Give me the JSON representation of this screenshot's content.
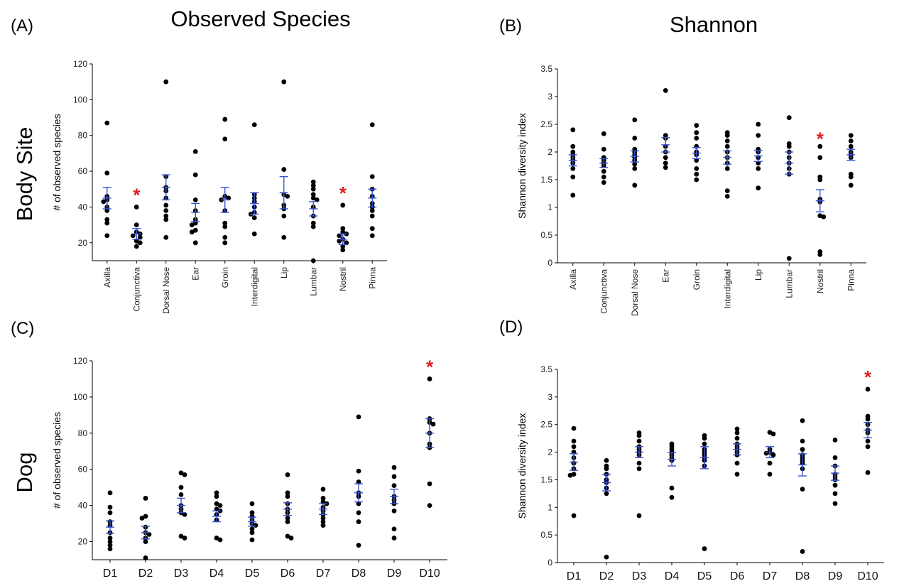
{
  "figure": {
    "column_titles": [
      "Observed Species",
      "Shannon"
    ],
    "row_labels": [
      "Body Site",
      "Dog"
    ]
  },
  "colors": {
    "points": "#000000",
    "error_bars": "#3a56d4",
    "significance": "#e02020"
  },
  "chart_data": [
    {
      "panel": "(A)",
      "type": "scatter",
      "ylabel": "# of observed species",
      "ylim": [
        10,
        120
      ],
      "yticks": [
        20,
        40,
        60,
        80,
        100,
        120
      ],
      "categories": [
        "Axilla",
        "Conjunctiva",
        "Dorsal Nose",
        "Ear",
        "Groin",
        "Interdigital",
        "Lip",
        "Lumbar",
        "Nostril",
        "Pinna"
      ],
      "points": [
        [
          87,
          59,
          46,
          44,
          43,
          40,
          38,
          33,
          31,
          24
        ],
        [
          40,
          30,
          26,
          25,
          24,
          23,
          21,
          20,
          18
        ],
        [
          110,
          57,
          51,
          49,
          45,
          41,
          38,
          35,
          33,
          23
        ],
        [
          71,
          58,
          44,
          38,
          33,
          31,
          30,
          27,
          26,
          20
        ],
        [
          89,
          78,
          46,
          45,
          44,
          38,
          31,
          29,
          23,
          20
        ],
        [
          86,
          47,
          45,
          43,
          40,
          37,
          36,
          34,
          25
        ],
        [
          110,
          61,
          47,
          46,
          41,
          39,
          35,
          23
        ],
        [
          54,
          52,
          50,
          47,
          45,
          44,
          40,
          35,
          31,
          29,
          10
        ],
        [
          41,
          28,
          26,
          25,
          24,
          22,
          21,
          20,
          18,
          16
        ],
        [
          86,
          57,
          50,
          46,
          42,
          40,
          38,
          35,
          28,
          24
        ]
      ],
      "mean": [
        45,
        25,
        51,
        37,
        44,
        42,
        48,
        39,
        22,
        45
      ],
      "se": [
        6,
        3,
        7,
        5,
        7,
        6,
        9,
        4,
        3,
        5
      ],
      "significant": [
        false,
        true,
        false,
        false,
        false,
        false,
        false,
        false,
        true,
        false
      ],
      "significance_marker": "*"
    },
    {
      "panel": "(B)",
      "type": "scatter",
      "ylabel": "Shannon diversity index",
      "ylim": [
        0,
        3.5
      ],
      "yticks": [
        "0",
        "0.5",
        "1",
        "1.5",
        "2",
        "2.5",
        "3",
        "3.5"
      ],
      "categories": [
        "Axilla",
        "Conjunctiva",
        "Dorsal Nose",
        "Ear",
        "Groin",
        "Interdigital",
        "Lip",
        "Lumbar",
        "Nostril",
        "Pinna"
      ],
      "points": [
        [
          2.4,
          2.1,
          2.0,
          1.95,
          1.9,
          1.85,
          1.8,
          1.7,
          1.55,
          1.22
        ],
        [
          2.33,
          2.05,
          1.9,
          1.85,
          1.8,
          1.75,
          1.65,
          1.55,
          1.45
        ],
        [
          2.58,
          2.25,
          2.05,
          2.0,
          1.95,
          1.9,
          1.85,
          1.78,
          1.7,
          1.4
        ],
        [
          3.11,
          2.3,
          2.25,
          2.1,
          2.0,
          1.9,
          1.8,
          1.72
        ],
        [
          2.48,
          2.35,
          2.25,
          2.1,
          2.0,
          1.95,
          1.85,
          1.7,
          1.6,
          1.5
        ],
        [
          2.35,
          2.3,
          2.2,
          2.1,
          2.0,
          1.9,
          1.8,
          1.7,
          1.3,
          1.2
        ],
        [
          2.5,
          2.3,
          2.05,
          2.0,
          1.9,
          1.8,
          1.7,
          1.35
        ],
        [
          2.62,
          2.15,
          2.1,
          2.0,
          1.9,
          1.8,
          1.7,
          1.6,
          0.08
        ],
        [
          2.1,
          1.9,
          1.55,
          1.5,
          1.15,
          1.1,
          0.85,
          0.83,
          0.2,
          0.15
        ],
        [
          2.3,
          2.2,
          2.1,
          2.0,
          1.95,
          1.9,
          1.6,
          1.55,
          1.4
        ]
      ],
      "mean": [
        1.85,
        1.8,
        1.92,
        2.13,
        1.98,
        1.9,
        1.93,
        1.8,
        1.12,
        1.95
      ],
      "se": [
        0.1,
        0.08,
        0.1,
        0.13,
        0.1,
        0.12,
        0.1,
        0.2,
        0.2,
        0.1
      ],
      "significant": [
        false,
        false,
        false,
        false,
        false,
        false,
        false,
        false,
        true,
        false
      ],
      "significance_marker": "*"
    },
    {
      "panel": "(C)",
      "type": "scatter",
      "ylabel": "# of observed species",
      "ylim": [
        10,
        120
      ],
      "yticks": [
        20,
        40,
        60,
        80,
        100,
        120
      ],
      "categories": [
        "D1",
        "D2",
        "D3",
        "D4",
        "D5",
        "D6",
        "D7",
        "D8",
        "D9",
        "D10"
      ],
      "points": [
        [
          47,
          39,
          36,
          31,
          29,
          25,
          22,
          20,
          18,
          16
        ],
        [
          44,
          34,
          33,
          28,
          25,
          24,
          22,
          20,
          11
        ],
        [
          58,
          57,
          50,
          46,
          40,
          38,
          36,
          35,
          23,
          22
        ],
        [
          47,
          45,
          41,
          40,
          38,
          37,
          35,
          32,
          22,
          21
        ],
        [
          41,
          36,
          34,
          32,
          30,
          29,
          27,
          25,
          21
        ],
        [
          57,
          47,
          45,
          41,
          38,
          36,
          33,
          31,
          23,
          22
        ],
        [
          49,
          44,
          42,
          41,
          39,
          37,
          35,
          33,
          31,
          29
        ],
        [
          89,
          59,
          53,
          47,
          45,
          41,
          36,
          31,
          18
        ],
        [
          61,
          56,
          51,
          45,
          43,
          41,
          37,
          27,
          22
        ],
        [
          110,
          88,
          86,
          85,
          80,
          74,
          72,
          52,
          40
        ]
      ],
      "mean": [
        28,
        25,
        40,
        34,
        31,
        38,
        38,
        47,
        45,
        80
      ],
      "se": [
        3.5,
        3.5,
        4,
        3,
        2.5,
        3.5,
        3,
        5,
        4,
        8
      ],
      "significant": [
        false,
        false,
        false,
        false,
        false,
        false,
        false,
        false,
        false,
        true
      ],
      "significance_marker": "*"
    },
    {
      "panel": "(D)",
      "type": "scatter",
      "ylabel": "Shannon diversity index",
      "ylim": [
        0,
        3.5
      ],
      "yticks": [
        "0",
        "0.5",
        "1",
        "1.5",
        "2",
        "2.5",
        "3",
        "3.5"
      ],
      "categories": [
        "D1",
        "D2",
        "D3",
        "D4",
        "D5",
        "D6",
        "D7",
        "D8",
        "D9",
        "D10"
      ],
      "points": [
        [
          2.43,
          2.2,
          2.1,
          2.0,
          1.9,
          1.8,
          1.7,
          1.6,
          1.58,
          0.85
        ],
        [
          1.85,
          1.75,
          1.7,
          1.6,
          1.5,
          1.45,
          1.35,
          1.25,
          0.1
        ],
        [
          2.35,
          2.3,
          2.2,
          2.1,
          2.05,
          2.0,
          1.95,
          1.8,
          1.7,
          0.85
        ],
        [
          2.15,
          2.1,
          2.05,
          2.0,
          1.95,
          1.9,
          1.85,
          1.35,
          1.18
        ],
        [
          2.3,
          2.25,
          2.15,
          2.05,
          2.0,
          1.95,
          1.9,
          1.85,
          1.75,
          0.25
        ],
        [
          2.42,
          2.35,
          2.25,
          2.15,
          2.1,
          2.05,
          2.0,
          1.95,
          1.8,
          1.6
        ],
        [
          2.36,
          2.33,
          2.05,
          2.0,
          1.98,
          1.95,
          1.8,
          1.6
        ],
        [
          2.57,
          2.2,
          2.05,
          1.95,
          1.9,
          1.85,
          1.8,
          1.7,
          1.33,
          0.2
        ],
        [
          2.22,
          1.9,
          1.75,
          1.6,
          1.55,
          1.5,
          1.4,
          1.25,
          1.07
        ],
        [
          3.14,
          2.65,
          2.6,
          2.5,
          2.4,
          2.35,
          2.2,
          2.1,
          1.63
        ]
      ],
      "mean": [
        1.82,
        1.45,
        2.0,
        1.87,
        1.9,
        2.05,
        2.0,
        1.77,
        1.62,
        2.4
      ],
      "se": [
        0.15,
        0.15,
        0.1,
        0.12,
        0.2,
        0.1,
        0.1,
        0.2,
        0.13,
        0.14
      ],
      "significant": [
        false,
        false,
        false,
        false,
        false,
        false,
        false,
        false,
        false,
        true
      ],
      "significance_marker": "*"
    }
  ]
}
